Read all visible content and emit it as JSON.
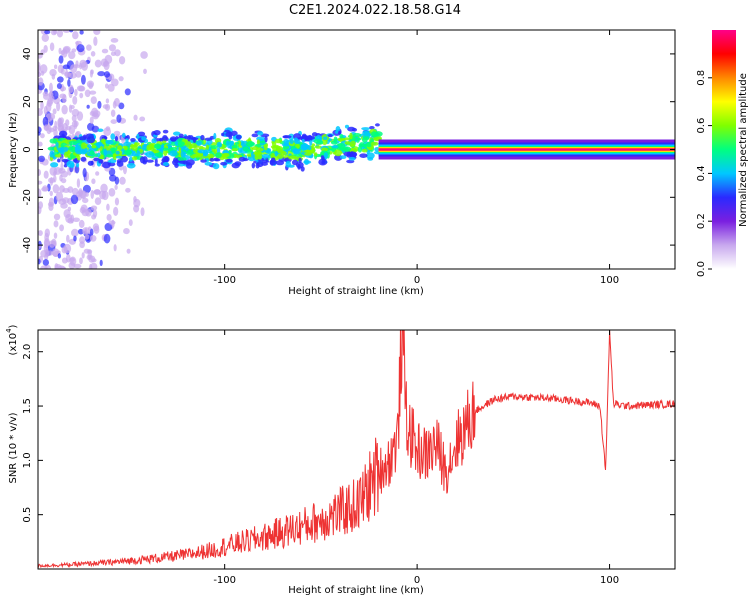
{
  "figure": {
    "title": "C2E1.2024.022.18.58.G14"
  },
  "colors": {
    "snr_line": "#ee3333",
    "axis": "#000000",
    "colormap_stops": [
      "#ffffff",
      "#c8a8ee",
      "#7a1fe0",
      "#2a2aff",
      "#00c8ff",
      "#00ff80",
      "#80ff00",
      "#ffff00",
      "#ff8800",
      "#ff0000",
      "#ff0088"
    ]
  },
  "chart_data": [
    {
      "type": "heatmap",
      "xlabel": "Height of straight line (km)",
      "ylabel": "Frequency (Hz)",
      "xlim": [
        -197,
        134
      ],
      "ylim": [
        -50,
        50
      ],
      "x_ticks": [
        -100,
        0,
        100
      ],
      "x_tick_labels": [
        "-100",
        "0",
        "100"
      ],
      "y_ticks": [
        40,
        20,
        0,
        -20,
        -40
      ],
      "y_tick_labels": [
        "40",
        "20",
        "0",
        "-20",
        "-40"
      ],
      "colorbar": {
        "label": "Normalized spectral amplitude",
        "range": [
          0,
          1
        ],
        "ticks": [
          0.0,
          0.2,
          0.4,
          0.6,
          0.8
        ],
        "tick_labels": [
          "0.0",
          "0.2",
          "0.4",
          "0.6",
          "0.8"
        ]
      },
      "features": [
        {
          "description": "broadband scatter",
          "x_range": [
            -197,
            -140
          ],
          "y_range": [
            -50,
            50
          ],
          "amplitude": 0.1
        },
        {
          "description": "noisy band",
          "x_range": [
            -190,
            -20
          ],
          "y_center": 0,
          "y_spread": 12,
          "amplitude": 0.35
        },
        {
          "description": "steady tone",
          "x_range": [
            -20,
            134
          ],
          "y_center": 0,
          "amplitude": 0.92
        }
      ]
    },
    {
      "type": "line",
      "xlabel": "Height of straight line (km)",
      "ylabel": "SNR (10 * v/v)",
      "y_scale_label": "(x10",
      "y_scale_exponent": "4",
      "xlim": [
        -197,
        134
      ],
      "ylim": [
        0,
        22000
      ],
      "x_ticks": [
        -100,
        0,
        100
      ],
      "x_tick_labels": [
        "-100",
        "0",
        "100"
      ],
      "y_ticks": [
        5000,
        10000,
        15000,
        20000
      ],
      "y_tick_labels": [
        "0.5",
        "1.0",
        "1.5",
        "2.0"
      ],
      "series": [
        {
          "color": "#ee3333",
          "x": [
            -197,
            -180,
            -160,
            -140,
            -120,
            -105,
            -100,
            -90,
            -80,
            -70,
            -60,
            -50,
            -40,
            -30,
            -25,
            -20,
            -15,
            -10,
            -8,
            -5,
            0,
            5,
            10,
            15,
            20,
            25,
            30,
            40,
            50,
            60,
            70,
            80,
            90,
            95,
            98,
            100,
            102,
            105,
            110,
            120,
            134
          ],
          "y": [
            300,
            400,
            600,
            900,
            1300,
            1800,
            2100,
            2500,
            2900,
            3400,
            3900,
            4500,
            5200,
            6000,
            7500,
            9000,
            9800,
            12000,
            22000,
            13000,
            11000,
            10500,
            11500,
            9000,
            11500,
            13000,
            14500,
            15600,
            15900,
            15800,
            15700,
            15500,
            15300,
            15000,
            9000,
            22000,
            15200,
            15100,
            15000,
            15100,
            15200
          ]
        }
      ]
    }
  ]
}
